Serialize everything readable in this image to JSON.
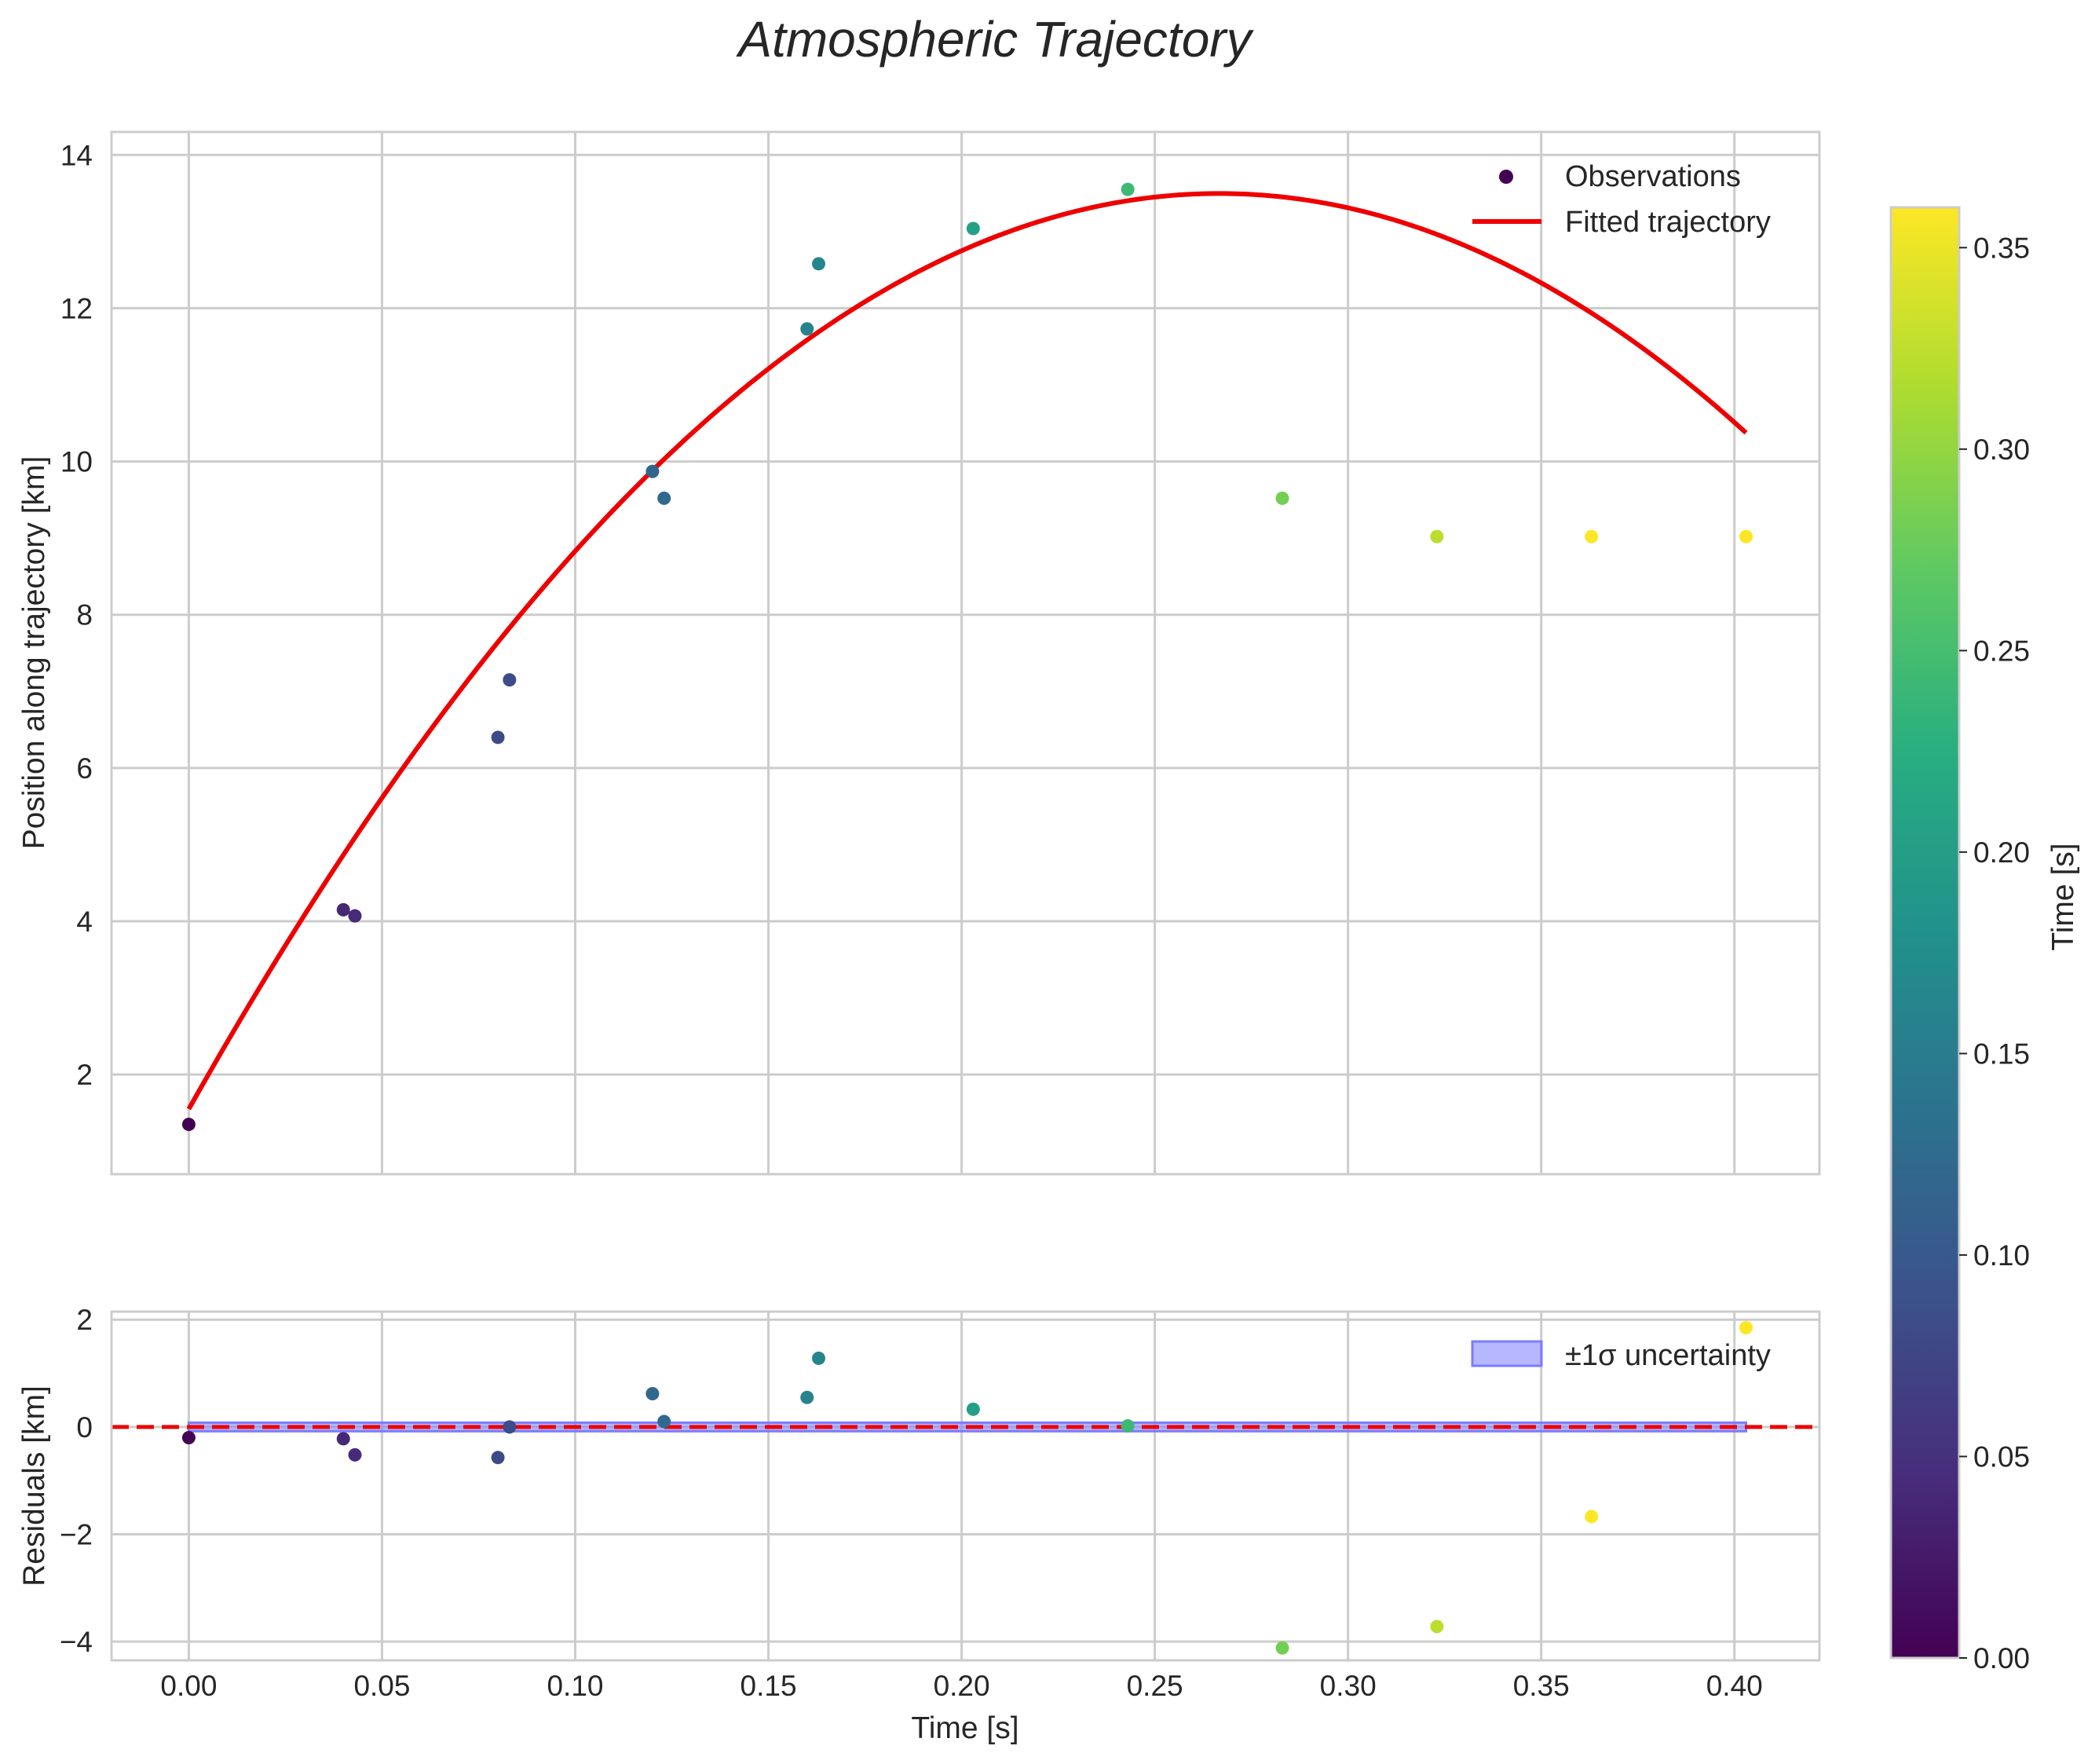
{
  "chart_data": [
    {
      "type": "scatter",
      "title": "Atmospheric Trajectory",
      "xlabel": "",
      "ylabel": "Position along trajectory [km]",
      "xlim": [
        -0.02,
        0.422
      ],
      "ylim": [
        0.7,
        14.3
      ],
      "xticks": [
        0.0,
        0.05,
        0.1,
        0.15,
        0.2,
        0.25,
        0.3,
        0.35,
        0.4
      ],
      "yticks": [
        2,
        4,
        6,
        8,
        10,
        12,
        14
      ],
      "ytick_labels": [
        "2",
        "4",
        "6",
        "8",
        "10",
        "12",
        "14"
      ],
      "grid": true,
      "legend_position": "top-right",
      "series": [
        {
          "name": "Observations",
          "kind": "scatter",
          "color_by": "time",
          "points": [
            {
              "x": 0.0,
              "y": 1.35
            },
            {
              "x": 0.04,
              "y": 4.15
            },
            {
              "x": 0.043,
              "y": 4.07
            },
            {
              "x": 0.08,
              "y": 6.4
            },
            {
              "x": 0.083,
              "y": 7.15
            },
            {
              "x": 0.12,
              "y": 9.87
            },
            {
              "x": 0.123,
              "y": 9.52
            },
            {
              "x": 0.16,
              "y": 11.73
            },
            {
              "x": 0.163,
              "y": 12.58
            },
            {
              "x": 0.203,
              "y": 13.04
            },
            {
              "x": 0.243,
              "y": 13.55
            },
            {
              "x": 0.283,
              "y": 9.52
            },
            {
              "x": 0.323,
              "y": 9.02
            },
            {
              "x": 0.363,
              "y": 9.02
            },
            {
              "x": 0.403,
              "y": 9.02
            }
          ]
        },
        {
          "name": "Fitted trajectory",
          "kind": "line",
          "color": "#ee0000",
          "model": "quadratic",
          "coefficients": {
            "a": -168.0,
            "b": 89.6,
            "c": 1.55
          },
          "x_range": [
            0.0,
            0.403
          ]
        }
      ]
    },
    {
      "type": "scatter",
      "title": "",
      "xlabel": "Time [s]",
      "ylabel": "Residuals [km]",
      "xlim": [
        -0.02,
        0.422
      ],
      "ylim": [
        -4.35,
        2.15
      ],
      "xticks": [
        0.0,
        0.05,
        0.1,
        0.15,
        0.2,
        0.25,
        0.3,
        0.35,
        0.4
      ],
      "xtick_labels": [
        "0.00",
        "0.05",
        "0.10",
        "0.15",
        "0.20",
        "0.25",
        "0.30",
        "0.35",
        "0.40"
      ],
      "yticks": [
        2,
        0,
        -2,
        -4
      ],
      "ytick_labels": [
        "2",
        "0",
        "−2",
        "−4"
      ],
      "grid": true,
      "legend_position": "top-right",
      "series": [
        {
          "name": "Residuals",
          "kind": "scatter",
          "color_by": "time",
          "points": [
            {
              "x": 0.0,
              "y": -0.2
            },
            {
              "x": 0.04,
              "y": -0.22
            },
            {
              "x": 0.043,
              "y": -0.52
            },
            {
              "x": 0.08,
              "y": -0.57
            },
            {
              "x": 0.083,
              "y": 0.0
            },
            {
              "x": 0.12,
              "y": 0.62
            },
            {
              "x": 0.123,
              "y": 0.1
            },
            {
              "x": 0.16,
              "y": 0.55
            },
            {
              "x": 0.163,
              "y": 1.28
            },
            {
              "x": 0.203,
              "y": 0.33
            },
            {
              "x": 0.243,
              "y": 0.02
            },
            {
              "x": 0.283,
              "y": -4.12
            },
            {
              "x": 0.323,
              "y": -3.72
            },
            {
              "x": 0.363,
              "y": -1.67
            },
            {
              "x": 0.403,
              "y": 1.85
            }
          ]
        },
        {
          "name": "±1σ uncertainty",
          "kind": "band",
          "color": "#7b7bff",
          "x_range": [
            0.0,
            0.403
          ],
          "halfwidth": 0.08
        },
        {
          "name": "zero reference",
          "kind": "hline",
          "y": 0,
          "style": "dashed",
          "color": "#ee0000"
        }
      ]
    }
  ],
  "colorbar": {
    "label": "Time [s]",
    "colormap": "viridis",
    "range": [
      0.0,
      0.36
    ],
    "ticks": [
      0.0,
      0.05,
      0.1,
      0.15,
      0.2,
      0.25,
      0.3,
      0.35
    ],
    "tick_labels": [
      "0.00",
      "0.05",
      "0.10",
      "0.15",
      "0.20",
      "0.25",
      "0.30",
      "0.35"
    ]
  },
  "legends": {
    "top": {
      "observations": "Observations",
      "fit": "Fitted trajectory"
    },
    "bottom": {
      "band": "±1σ uncertainty"
    }
  },
  "colors": {
    "fit_line": "#ee0000",
    "band_fill": "#7b7bff",
    "grid": "#cccccc",
    "spine": "#cccccc",
    "text": "#262626"
  }
}
